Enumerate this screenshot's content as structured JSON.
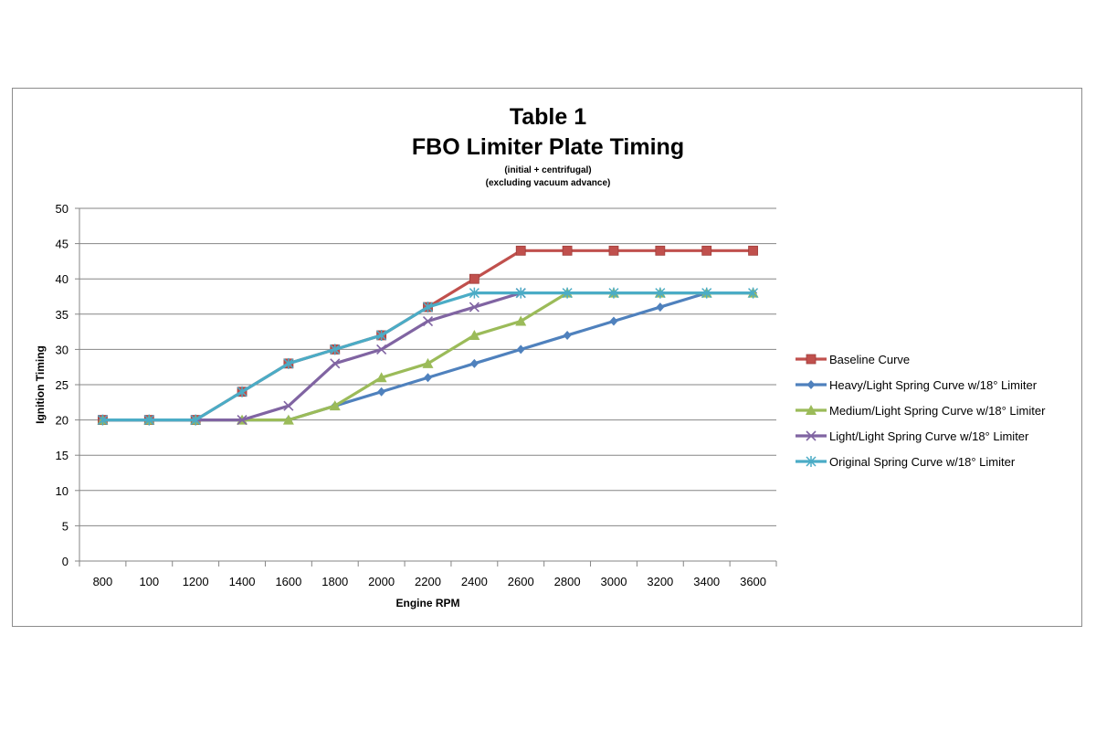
{
  "chart_data": {
    "type": "line",
    "title": "Table 1",
    "subtitle": "FBO Limiter Plate Timing",
    "notes": [
      "(initial + centrifugal)",
      "(excluding vacuum advance)"
    ],
    "xlabel": "Engine RPM",
    "ylabel": "Ignition Timing",
    "categories": [
      "800",
      "100",
      "1200",
      "1400",
      "1600",
      "1800",
      "2000",
      "2200",
      "2400",
      "2600",
      "2800",
      "3000",
      "3200",
      "3400",
      "3600"
    ],
    "ylim": [
      0,
      50
    ],
    "yticks": [
      0,
      5,
      10,
      15,
      20,
      25,
      30,
      35,
      40,
      45,
      50
    ],
    "grid": true,
    "legend_position": "right",
    "series": [
      {
        "name": "Baseline Curve",
        "color": "#c0504d",
        "marker": "square",
        "values": [
          20,
          20,
          20,
          24,
          28,
          30,
          32,
          36,
          40,
          44,
          44,
          44,
          44,
          44,
          44
        ]
      },
      {
        "name": "Heavy/Light Spring Curve w/18° Limiter",
        "color": "#4f81bd",
        "marker": "diamond",
        "values": [
          20,
          20,
          20,
          20,
          20,
          22,
          24,
          26,
          28,
          30,
          32,
          34,
          36,
          38,
          38
        ]
      },
      {
        "name": "Medium/Light Spring Curve w/18° Limiter",
        "color": "#9bbb59",
        "marker": "triangle",
        "values": [
          20,
          20,
          20,
          20,
          20,
          22,
          26,
          28,
          32,
          34,
          38,
          38,
          38,
          38,
          38
        ]
      },
      {
        "name": "Light/Light Spring Curve w/18° Limiter",
        "color": "#8064a2",
        "marker": "x",
        "values": [
          20,
          20,
          20,
          20,
          22,
          28,
          30,
          34,
          36,
          38,
          null,
          null,
          null,
          null,
          null
        ]
      },
      {
        "name": "Original Spring Curve w/18° Limiter",
        "color": "#4bacc6",
        "marker": "star",
        "values": [
          20,
          20,
          20,
          24,
          28,
          30,
          32,
          36,
          38,
          38,
          38,
          38,
          38,
          38,
          38
        ]
      }
    ]
  }
}
